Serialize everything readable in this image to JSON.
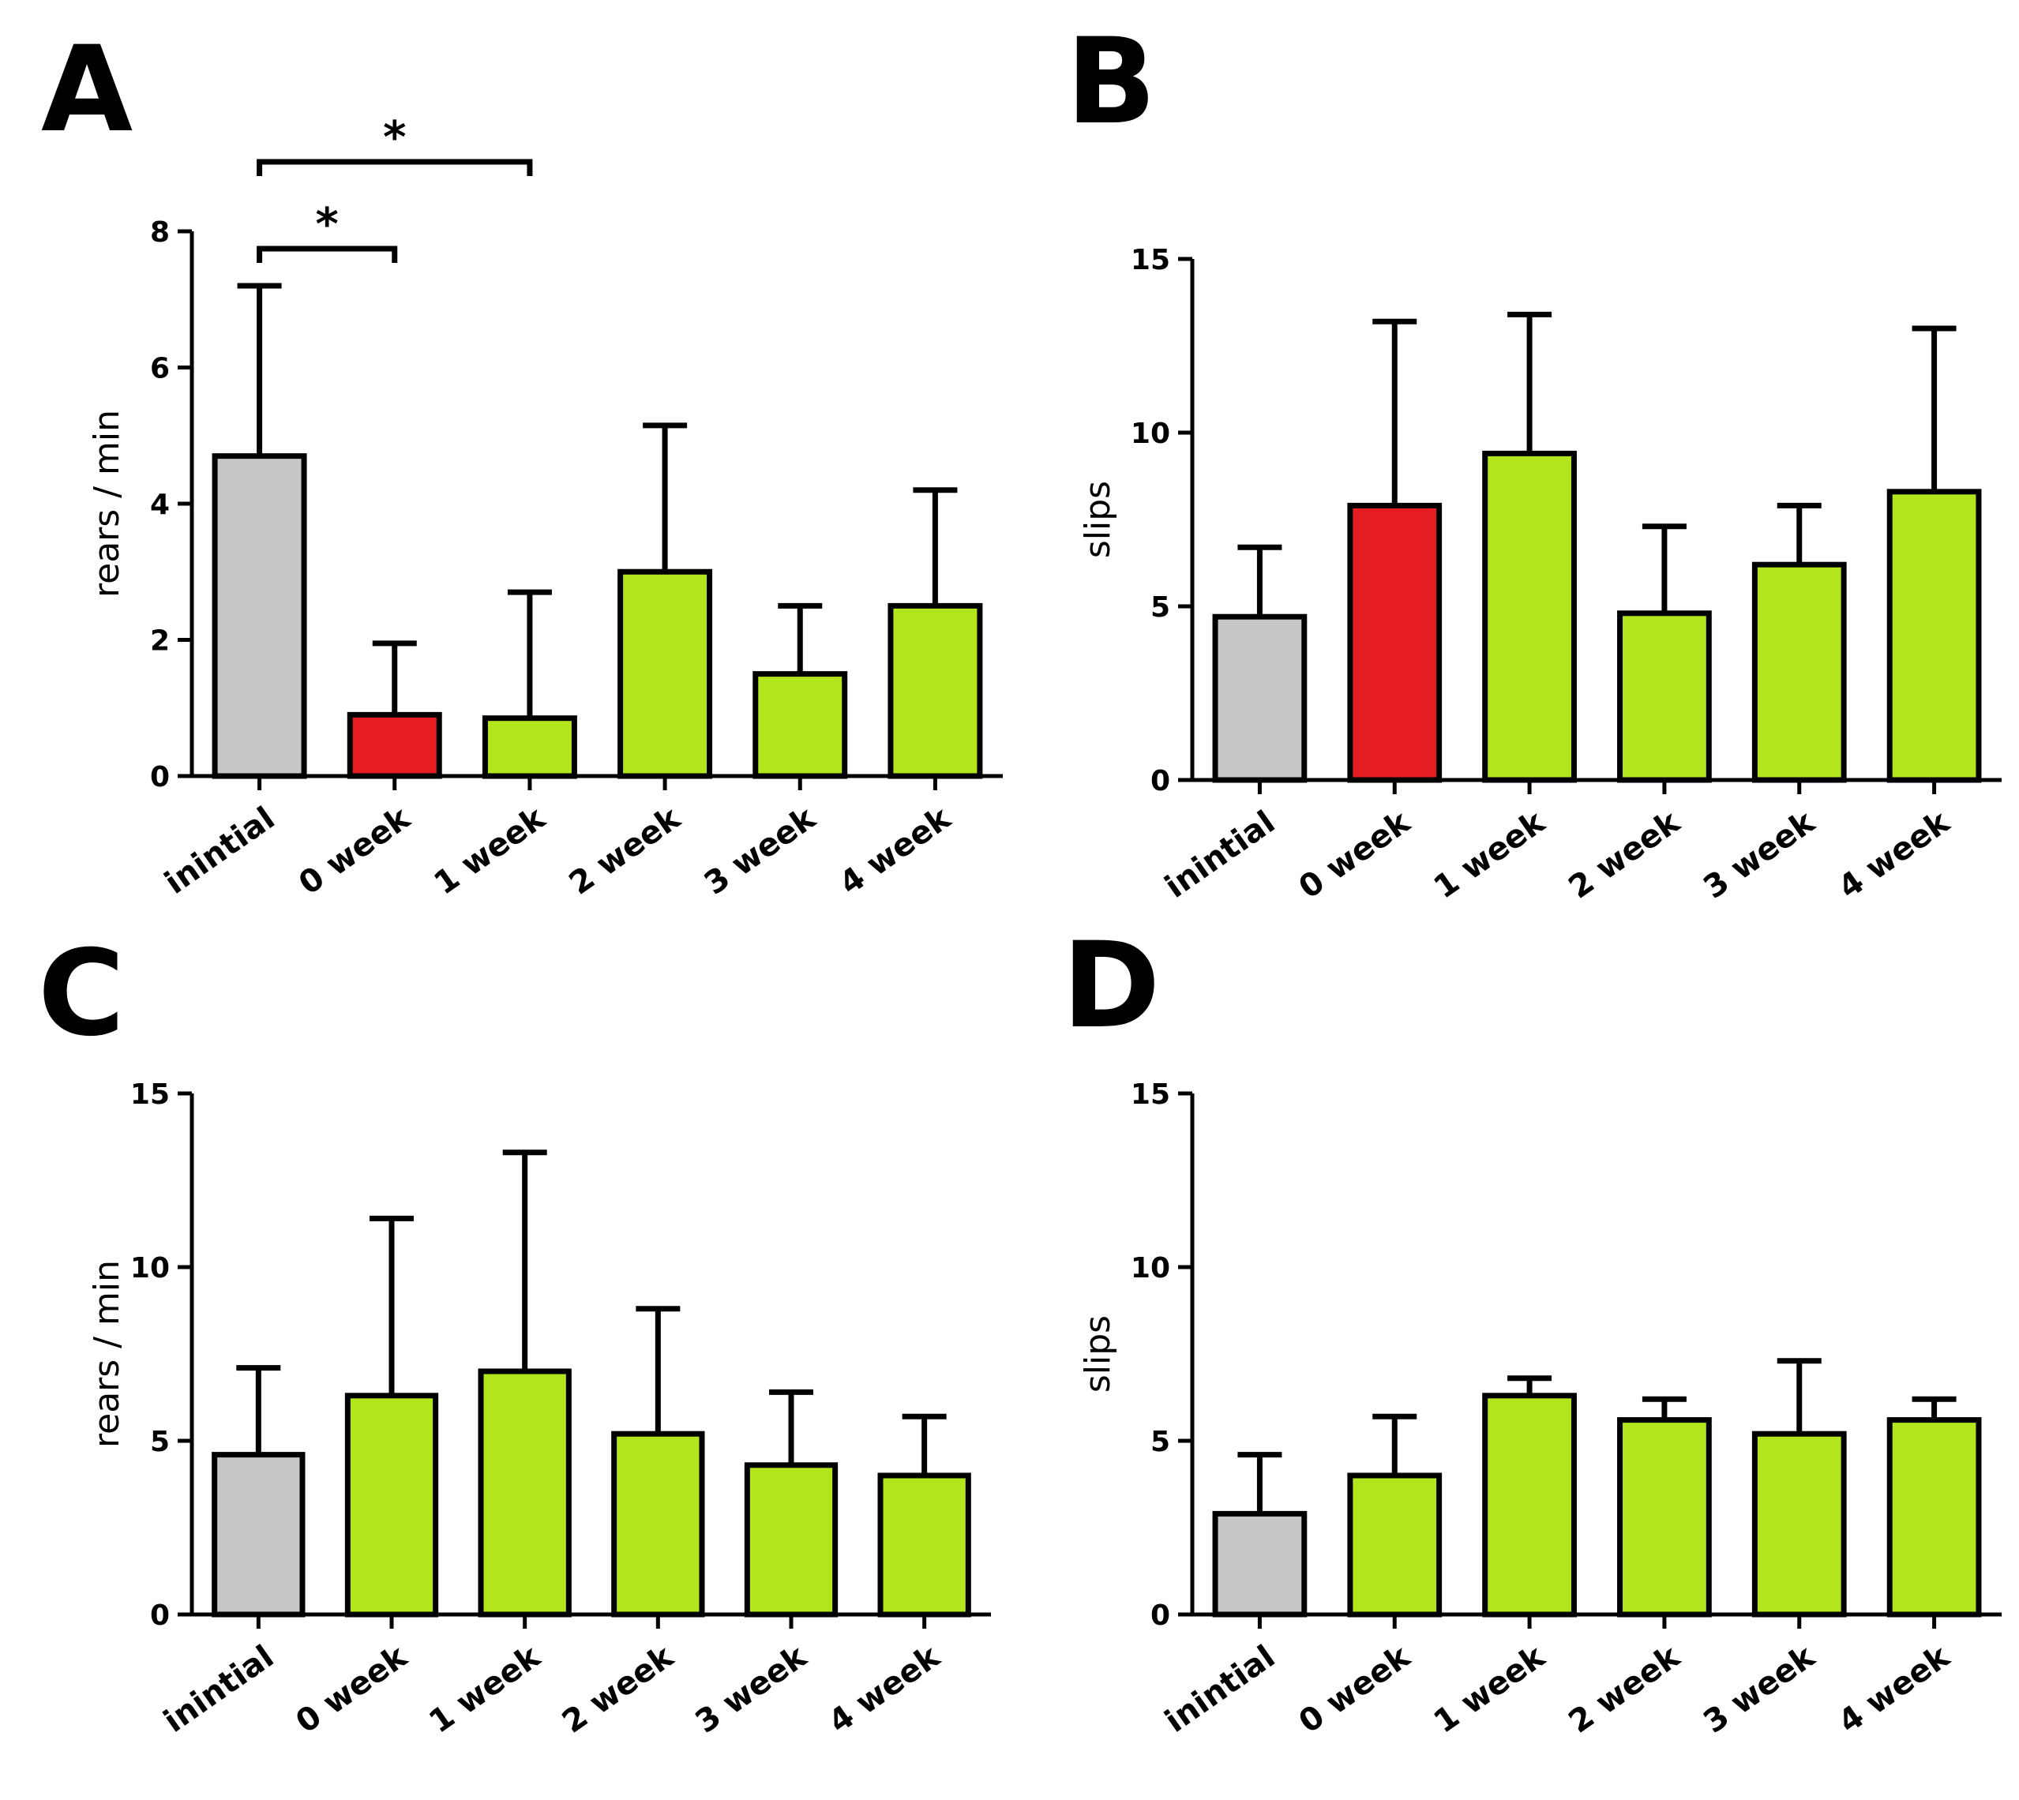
{
  "colors": {
    "baseline": "#c6c6c6",
    "injury": "#e51d23",
    "recovery": "#b3e51c",
    "outline": "#000000"
  },
  "chart_data": [
    {
      "panel": "A",
      "type": "bar",
      "ylabel": "rears / min",
      "ylim": [
        0,
        8
      ],
      "yticks": [
        "0",
        "2",
        "4",
        "6",
        "8"
      ],
      "categories": [
        "inintial",
        "0 week",
        "1 week",
        "2 week",
        "3 week",
        "4 week"
      ],
      "values": [
        4.7,
        0.9,
        0.85,
        3.0,
        1.5,
        2.5
      ],
      "errors": [
        2.5,
        1.05,
        1.85,
        2.15,
        1.0,
        1.7
      ],
      "bar_colors": [
        "baseline",
        "injury",
        "recovery",
        "recovery",
        "recovery",
        "recovery"
      ],
      "significance": [
        {
          "from": 0,
          "to": 1,
          "label": "*"
        },
        {
          "from": 0,
          "to": 2,
          "label": "*"
        }
      ]
    },
    {
      "panel": "B",
      "type": "bar",
      "ylabel": "slips",
      "ylim": [
        0,
        15
      ],
      "yticks": [
        "0",
        "5",
        "10",
        "15"
      ],
      "categories": [
        "inintial",
        "0 week",
        "1 week",
        "2 week",
        "3 week",
        "4 week"
      ],
      "values": [
        4.7,
        7.9,
        9.4,
        4.8,
        6.2,
        8.3
      ],
      "errors": [
        2.0,
        5.3,
        4.0,
        2.5,
        1.7,
        4.7
      ],
      "bar_colors": [
        "baseline",
        "injury",
        "recovery",
        "recovery",
        "recovery",
        "recovery"
      ],
      "significance": []
    },
    {
      "panel": "C",
      "type": "bar",
      "ylabel": "rears / min",
      "ylim": [
        0,
        15
      ],
      "yticks": [
        "0",
        "5",
        "10",
        "15"
      ],
      "categories": [
        "inintial",
        "0 week",
        "1 week",
        "2 week",
        "3 week",
        "4 week"
      ],
      "values": [
        4.6,
        6.3,
        7.0,
        5.2,
        4.3,
        4.0
      ],
      "errors": [
        2.5,
        5.1,
        6.3,
        3.6,
        2.1,
        1.7
      ],
      "bar_colors": [
        "baseline",
        "recovery",
        "recovery",
        "recovery",
        "recovery",
        "recovery"
      ],
      "significance": []
    },
    {
      "panel": "D",
      "type": "bar",
      "ylabel": "slips",
      "ylim": [
        0,
        15
      ],
      "yticks": [
        "0",
        "5",
        "10",
        "15"
      ],
      "categories": [
        "inintial",
        "0 week",
        "1 week",
        "2 week",
        "3 week",
        "4 week"
      ],
      "values": [
        2.9,
        4.0,
        6.3,
        5.6,
        5.2,
        5.6
      ],
      "errors": [
        1.7,
        1.7,
        0.5,
        0.6,
        2.1,
        0.6
      ],
      "bar_colors": [
        "baseline",
        "recovery",
        "recovery",
        "recovery",
        "recovery",
        "recovery"
      ],
      "significance": []
    }
  ]
}
